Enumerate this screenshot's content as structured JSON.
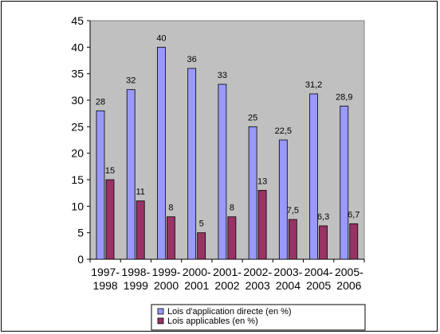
{
  "chart_data": {
    "type": "bar",
    "categories": [
      [
        "1997-",
        "1998"
      ],
      [
        "1998-",
        "1999"
      ],
      [
        "1999-",
        "2000"
      ],
      [
        "2000-",
        "2001"
      ],
      [
        "2001-",
        "2002"
      ],
      [
        "2002-",
        "2003"
      ],
      [
        "2003-",
        "2004"
      ],
      [
        "2004-",
        "2005"
      ],
      [
        "2005-",
        "2006"
      ]
    ],
    "series": [
      {
        "name": "Lois d'application directe (en %)",
        "values": [
          28,
          32,
          40,
          36,
          33,
          25,
          22.5,
          31.2,
          28.9
        ],
        "labels": [
          "28",
          "32",
          "40",
          "36",
          "33",
          "25",
          "22,5",
          "31,2",
          "28,9"
        ],
        "color": "#9999ff"
      },
      {
        "name": "Lois applicables (en %)",
        "values": [
          15,
          11,
          8,
          5,
          8,
          13,
          7.5,
          6.3,
          6.7
        ],
        "labels": [
          "15",
          "11",
          "8",
          "5",
          "8",
          "13",
          "7,5",
          "6,3",
          "6,7"
        ],
        "color": "#993366"
      }
    ],
    "yticks": [
      "0",
      "5",
      "10",
      "15",
      "20",
      "25",
      "30",
      "35",
      "40",
      "45"
    ],
    "ylim": [
      0,
      45
    ],
    "plot_background": "#c0c0c0",
    "grid": false,
    "legend_position": "bottom"
  }
}
